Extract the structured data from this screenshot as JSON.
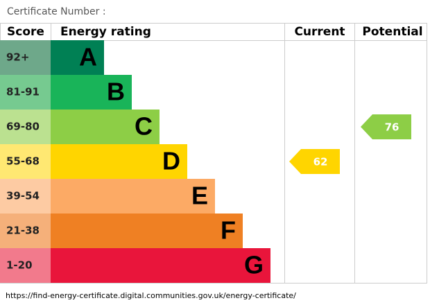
{
  "header": {
    "title": "Certificate Number :"
  },
  "columns": {
    "score": "Score",
    "rating": "Energy rating",
    "current": "Current",
    "potential": "Potential"
  },
  "bands": [
    {
      "score": "92+",
      "letter": "A",
      "color": "#008054",
      "light": "#6ea88a"
    },
    {
      "score": "81-91",
      "letter": "B",
      "color": "#19b459",
      "light": "#76ca90"
    },
    {
      "score": "69-80",
      "letter": "C",
      "color": "#8dce46",
      "light": "#bbe190"
    },
    {
      "score": "55-68",
      "letter": "D",
      "color": "#ffd500",
      "light": "#ffe872"
    },
    {
      "score": "39-54",
      "letter": "E",
      "color": "#fcaa65",
      "light": "#fdcba3"
    },
    {
      "score": "21-38",
      "letter": "F",
      "color": "#ef8023",
      "light": "#f5b07a"
    },
    {
      "score": "1-20",
      "letter": "G",
      "color": "#e9153b",
      "light": "#f27a8c"
    }
  ],
  "current": 62,
  "potential": 76,
  "footer": "https://find-energy-certificate.digital.communities.gov.uk/energy-certificate/"
}
